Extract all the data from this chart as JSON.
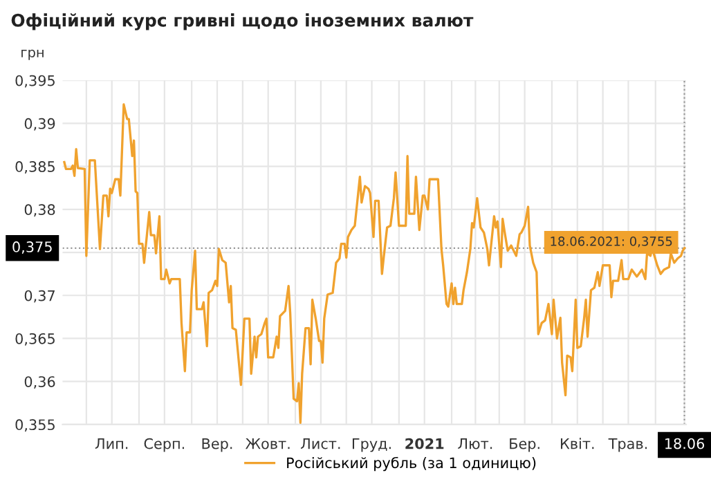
{
  "chart_data": {
    "type": "line",
    "title": "Офіційний курс гривні щодо іноземних валют",
    "ylabel": "грн",
    "x": [
      "2020-06-18",
      "2020-06-19",
      "2020-06-22",
      "2020-06-23",
      "2020-06-24",
      "2020-06-25",
      "2020-06-26",
      "2020-06-30",
      "2020-07-01",
      "2020-07-03",
      "2020-07-06",
      "2020-07-09",
      "2020-07-11",
      "2020-07-13",
      "2020-07-14",
      "2020-07-15",
      "2020-07-16",
      "2020-07-18",
      "2020-07-20",
      "2020-07-21",
      "2020-07-23",
      "2020-07-25",
      "2020-07-26",
      "2020-07-28",
      "2020-07-29",
      "2020-07-30",
      "2020-07-31",
      "2020-08-01",
      "2020-08-03",
      "2020-08-04",
      "2020-08-07",
      "2020-08-08",
      "2020-08-10",
      "2020-08-11",
      "2020-08-13",
      "2020-08-14",
      "2020-08-16",
      "2020-08-17",
      "2020-08-19",
      "2020-08-20",
      "2020-08-25",
      "2020-08-26",
      "2020-08-28",
      "2020-08-29",
      "2020-08-31",
      "2020-09-01",
      "2020-09-03",
      "2020-09-04",
      "2020-09-07",
      "2020-09-08",
      "2020-09-10",
      "2020-09-11",
      "2020-09-13",
      "2020-09-15",
      "2020-09-16",
      "2020-09-17",
      "2020-09-19",
      "2020-09-21",
      "2020-09-23",
      "2020-09-24",
      "2020-09-25",
      "2020-09-27",
      "2020-09-30",
      "2020-10-02",
      "2020-10-05",
      "2020-10-06",
      "2020-10-08",
      "2020-10-09",
      "2020-10-10",
      "2020-10-12",
      "2020-10-14",
      "2020-10-15",
      "2020-10-16",
      "2020-10-19",
      "2020-10-21",
      "2020-10-22",
      "2020-10-23",
      "2020-10-26",
      "2020-10-28",
      "2020-10-29",
      "2020-10-31",
      "2020-11-02",
      "2020-11-03",
      "2020-11-04",
      "2020-11-05",
      "2020-11-07",
      "2020-11-09",
      "2020-11-10",
      "2020-11-11",
      "2020-11-13",
      "2020-11-15",
      "2020-11-16",
      "2020-11-17",
      "2020-11-18",
      "2020-11-20",
      "2020-11-23",
      "2020-11-25",
      "2020-11-27",
      "2020-11-28",
      "2020-11-30",
      "2020-12-01",
      "2020-12-02",
      "2020-12-04",
      "2020-12-06",
      "2020-12-08",
      "2020-12-09",
      "2020-12-10",
      "2020-12-12",
      "2020-12-14",
      "2020-12-15",
      "2020-12-17",
      "2020-12-18",
      "2020-12-20",
      "2020-12-22",
      "2020-12-23",
      "2020-12-25",
      "2020-12-27",
      "2020-12-29",
      "2020-12-30",
      "2021-01-01",
      "2021-01-05",
      "2021-01-06",
      "2021-01-07",
      "2021-01-10",
      "2021-01-11",
      "2021-01-13",
      "2021-01-15",
      "2021-01-16",
      "2021-01-18",
      "2021-01-19",
      "2021-01-24",
      "2021-01-26",
      "2021-01-27",
      "2021-01-29",
      "2021-01-30",
      "2021-02-01",
      "2021-02-02",
      "2021-02-03",
      "2021-02-04",
      "2021-02-07",
      "2021-02-08",
      "2021-02-10",
      "2021-02-12",
      "2021-02-13",
      "2021-02-14",
      "2021-02-16",
      "2021-02-18",
      "2021-02-20",
      "2021-02-22",
      "2021-02-23",
      "2021-02-24",
      "2021-02-26",
      "2021-02-27",
      "2021-02-28",
      "2021-03-02",
      "2021-03-03",
      "2021-03-04",
      "2021-03-06",
      "2021-03-08",
      "2021-03-11",
      "2021-03-13",
      "2021-03-14",
      "2021-03-16",
      "2021-03-18",
      "2021-03-19",
      "2021-03-21",
      "2021-03-23",
      "2021-03-24",
      "2021-03-26",
      "2021-03-28",
      "2021-03-30",
      "2021-04-01",
      "2021-04-02",
      "2021-04-04",
      "2021-04-06",
      "2021-04-07",
      "2021-04-09",
      "2021-04-10",
      "2021-04-12",
      "2021-04-13",
      "2021-04-15",
      "2021-04-16",
      "2021-04-18",
      "2021-04-20",
      "2021-04-21",
      "2021-04-22",
      "2021-04-24",
      "2021-04-26",
      "2021-04-28",
      "2021-04-29",
      "2021-05-01",
      "2021-05-05",
      "2021-05-06",
      "2021-05-07",
      "2021-05-10",
      "2021-05-12",
      "2021-05-13",
      "2021-05-16",
      "2021-05-18",
      "2021-05-21",
      "2021-05-24",
      "2021-05-26",
      "2021-05-27",
      "2021-05-29",
      "2021-05-30",
      "2021-06-02",
      "2021-06-04",
      "2021-06-06",
      "2021-06-09",
      "2021-06-10",
      "2021-06-12",
      "2021-06-14",
      "2021-06-16",
      "2021-06-17",
      "2021-06-18"
    ],
    "series": [
      {
        "name": "Російський рубль (за 1 одиницю)",
        "color": "#f0a22e",
        "values": [
          0.3855,
          0.3847,
          0.3847,
          0.3851,
          0.3839,
          0.387,
          0.3848,
          0.3847,
          0.3746,
          0.3857,
          0.3857,
          0.3754,
          0.3816,
          0.3816,
          0.3792,
          0.3824,
          0.3819,
          0.3835,
          0.3835,
          0.3816,
          0.3922,
          0.3905,
          0.3905,
          0.3862,
          0.388,
          0.3821,
          0.3819,
          0.376,
          0.376,
          0.3738,
          0.3797,
          0.377,
          0.377,
          0.3749,
          0.3792,
          0.3719,
          0.3719,
          0.373,
          0.3714,
          0.3719,
          0.3719,
          0.3668,
          0.3612,
          0.3657,
          0.3657,
          0.3706,
          0.3752,
          0.3684,
          0.3684,
          0.3692,
          0.3641,
          0.3703,
          0.3706,
          0.3717,
          0.3711,
          0.3754,
          0.3741,
          0.3738,
          0.3692,
          0.3711,
          0.3662,
          0.366,
          0.3596,
          0.3673,
          0.3673,
          0.3609,
          0.3652,
          0.3628,
          0.3652,
          0.3655,
          0.3668,
          0.3673,
          0.3628,
          0.3628,
          0.3652,
          0.3639,
          0.3676,
          0.3682,
          0.3711,
          0.3679,
          0.358,
          0.3577,
          0.3598,
          0.3552,
          0.3609,
          0.3662,
          0.3662,
          0.362,
          0.3695,
          0.3673,
          0.3647,
          0.3647,
          0.3622,
          0.3673,
          0.3701,
          0.3703,
          0.3738,
          0.3743,
          0.376,
          0.376,
          0.3744,
          0.3768,
          0.3776,
          0.3781,
          0.3819,
          0.3838,
          0.3808,
          0.3827,
          0.3824,
          0.3819,
          0.3768,
          0.381,
          0.381,
          0.3725,
          0.3744,
          0.3779,
          0.3781,
          0.3813,
          0.3843,
          0.3781,
          0.3781,
          0.3862,
          0.3795,
          0.3795,
          0.3838,
          0.3776,
          0.3816,
          0.3816,
          0.38,
          0.3835,
          0.3835,
          0.3754,
          0.3735,
          0.369,
          0.3687,
          0.3714,
          0.369,
          0.3709,
          0.369,
          0.369,
          0.3706,
          0.3727,
          0.3754,
          0.3784,
          0.3779,
          0.3813,
          0.3779,
          0.3773,
          0.3754,
          0.3735,
          0.3754,
          0.3792,
          0.3779,
          0.3786,
          0.3733,
          0.3789,
          0.3776,
          0.3752,
          0.3758,
          0.3746,
          0.3771,
          0.3773,
          0.3781,
          0.3803,
          0.3758,
          0.3738,
          0.3727,
          0.3655,
          0.3668,
          0.3671,
          0.369,
          0.3655,
          0.3695,
          0.365,
          0.3674,
          0.3622,
          0.3584,
          0.363,
          0.3628,
          0.3612,
          0.3695,
          0.3639,
          0.3641,
          0.3674,
          0.3695,
          0.3652,
          0.3706,
          0.3709,
          0.3727,
          0.3711,
          0.3735,
          0.3735,
          0.3698,
          0.3717,
          0.3717,
          0.3741,
          0.3719,
          0.3719,
          0.373,
          0.3722,
          0.373,
          0.3719,
          0.3749,
          0.3746,
          0.3755,
          0.3735,
          0.3725,
          0.373,
          0.3733,
          0.3749,
          0.3738,
          0.3743,
          0.3746,
          0.3752,
          0.3755
        ]
      }
    ],
    "xlim": [
      "2020-06-17",
      "2021-06-19"
    ],
    "xticks": [
      {
        "value": "2020-07-01",
        "label": null
      },
      {
        "value": "2020-07-16",
        "label": "Лип."
      },
      {
        "value": "2020-08-01",
        "label": null
      },
      {
        "value": "2020-08-16",
        "label": "Серп."
      },
      {
        "value": "2020-09-01",
        "label": null
      },
      {
        "value": "2020-09-16",
        "label": "Вер."
      },
      {
        "value": "2020-10-01",
        "label": null
      },
      {
        "value": "2020-10-16",
        "label": "Жовт."
      },
      {
        "value": "2020-11-01",
        "label": null
      },
      {
        "value": "2020-11-16",
        "label": "Лист."
      },
      {
        "value": "2020-12-01",
        "label": null
      },
      {
        "value": "2020-12-16",
        "label": "Груд."
      },
      {
        "value": "2021-01-01",
        "label": null
      },
      {
        "value": "2021-01-16",
        "label": "2021"
      },
      {
        "value": "2021-02-01",
        "label": null
      },
      {
        "value": "2021-02-15",
        "label": "Лют."
      },
      {
        "value": "2021-03-01",
        "label": null
      },
      {
        "value": "2021-03-16",
        "label": "Бер."
      },
      {
        "value": "2021-04-01",
        "label": null
      },
      {
        "value": "2021-04-16",
        "label": "Квіт."
      },
      {
        "value": "2021-05-01",
        "label": null
      },
      {
        "value": "2021-05-16",
        "label": "Трав."
      },
      {
        "value": "2021-06-01",
        "label": null
      },
      {
        "value": "2021-06-18",
        "label": "18.06"
      }
    ],
    "ylim": [
      0.355,
      0.395
    ],
    "yticks": [
      {
        "value": 0.355,
        "label": "0,355"
      },
      {
        "value": 0.36,
        "label": "0,36"
      },
      {
        "value": 0.365,
        "label": "0,365"
      },
      {
        "value": 0.37,
        "label": "0,37"
      },
      {
        "value": 0.375,
        "label": null
      },
      {
        "value": 0.38,
        "label": "0,38"
      },
      {
        "value": 0.385,
        "label": "0,385"
      },
      {
        "value": 0.39,
        "label": "0,39"
      },
      {
        "value": 0.395,
        "label": "0,395"
      }
    ],
    "ref_lines": [
      {
        "axis": "y",
        "value": 0.3755,
        "label": "0,375",
        "color": "#999999",
        "line_style": "dotted"
      },
      {
        "axis": "x",
        "value": "2021-06-18",
        "color": "#999999",
        "line_style": "dotted"
      }
    ],
    "annotations": [
      {
        "text": "18.06.2021: 0,3755",
        "x": "2021-06-18",
        "y": 0.3755
      }
    ],
    "grid": true,
    "legend": "bottom",
    "marker": "none",
    "line_style": "solid"
  }
}
